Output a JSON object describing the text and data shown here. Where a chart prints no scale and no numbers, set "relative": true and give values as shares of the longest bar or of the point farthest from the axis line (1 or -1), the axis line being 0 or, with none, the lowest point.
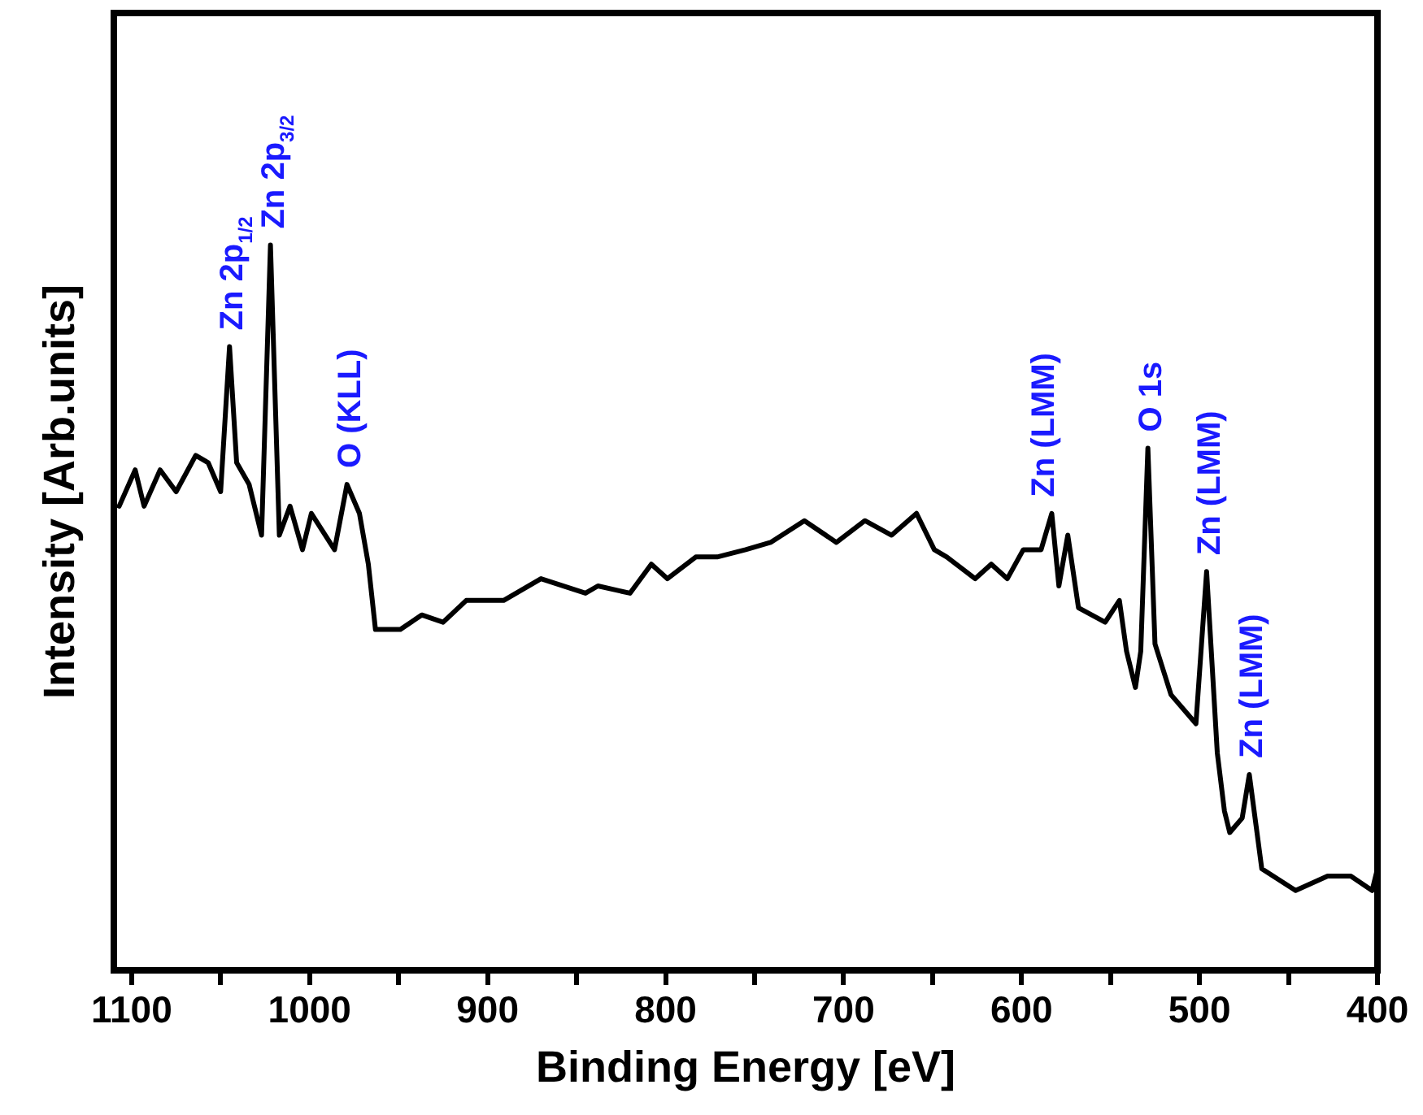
{
  "chart_data": {
    "type": "line",
    "relative": true,
    "xlabel": "Binding Energy [eV]",
    "ylabel": "Intensity [Arb.units]",
    "xlim": [
      1110,
      400
    ],
    "xticks": [
      1100,
      {
        "value": 1050,
        "label": null
      },
      1000,
      {
        "value": 950,
        "label": null
      },
      900,
      {
        "value": 850,
        "label": null
      },
      800,
      {
        "value": 750,
        "label": null
      },
      700,
      {
        "value": 650,
        "label": null
      },
      600,
      {
        "value": 550,
        "label": null
      },
      500,
      {
        "value": 450,
        "label": null
      },
      400
    ],
    "grid": false,
    "legend": false,
    "marker": "none",
    "line_style": "solid",
    "series": [
      {
        "color": "#000000",
        "x": [
          1107,
          1098,
          1093,
          1084,
          1075,
          1064,
          1057,
          1050,
          1045,
          1041,
          1034,
          1027,
          1022,
          1017,
          1011,
          1004,
          999,
          986,
          979,
          972,
          967,
          963,
          949,
          937,
          925,
          912,
          891,
          870,
          845,
          838,
          820,
          808,
          799,
          783,
          771,
          755,
          741,
          722,
          704,
          688,
          673,
          659,
          649,
          642,
          626,
          617,
          608,
          599,
          589,
          583,
          579,
          574,
          568,
          553,
          545,
          541,
          536,
          533,
          529,
          525,
          516,
          502,
          496,
          490,
          486,
          483,
          476,
          472,
          465,
          446,
          428,
          415,
          403,
          400
        ],
        "values": [
          0.64,
          0.69,
          0.64,
          0.69,
          0.66,
          0.71,
          0.7,
          0.66,
          0.86,
          0.7,
          0.67,
          0.6,
          1.0,
          0.6,
          0.64,
          0.58,
          0.63,
          0.58,
          0.67,
          0.63,
          0.56,
          0.47,
          0.47,
          0.49,
          0.48,
          0.51,
          0.51,
          0.54,
          0.52,
          0.53,
          0.52,
          0.56,
          0.54,
          0.57,
          0.57,
          0.58,
          0.59,
          0.62,
          0.59,
          0.62,
          0.6,
          0.63,
          0.58,
          0.57,
          0.54,
          0.56,
          0.54,
          0.58,
          0.58,
          0.63,
          0.53,
          0.6,
          0.5,
          0.48,
          0.51,
          0.44,
          0.39,
          0.44,
          0.72,
          0.45,
          0.38,
          0.34,
          0.55,
          0.3,
          0.22,
          0.19,
          0.21,
          0.27,
          0.14,
          0.11,
          0.13,
          0.13,
          0.11,
          0.14
        ]
      }
    ],
    "annotations": [
      {
        "text": "Zn 2p$_{1/2}$",
        "x": 1045,
        "y": 0.86
      },
      {
        "text": "Zn 2p$_{3/2}$",
        "x": 1022,
        "y": 1.0
      },
      {
        "text": "O (KLL)",
        "x": 979,
        "y": 0.67
      },
      {
        "text": "Zn (LMM)",
        "x": 589,
        "y": 0.63
      },
      {
        "text": "O 1s",
        "x": 529,
        "y": 0.72
      },
      {
        "text": "Zn (LMM)",
        "x": 496,
        "y": 0.55
      },
      {
        "text": "Zn (LMM)",
        "x": 472,
        "y": 0.27
      }
    ]
  }
}
